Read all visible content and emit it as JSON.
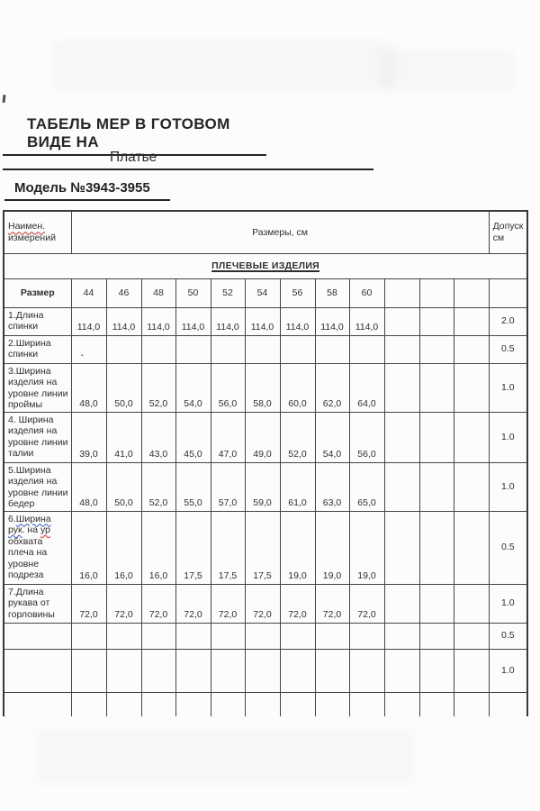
{
  "page": {
    "title": "ТАБЕЛЬ МЕР В ГОТОВОМ ВИДЕ НА",
    "garment": "Платье",
    "model": "Модель №3943-3955"
  },
  "table": {
    "header": {
      "name_segments": [
        {
          "text": "Наимен.",
          "underline": "red"
        },
        {
          "text": " измерений"
        }
      ],
      "sizes_title": "Размеры, см",
      "tolerance_title": "Допуск см"
    },
    "section_title": "ПЛЕЧЕВЫЕ ИЗДЕЛИЯ",
    "size_row_label": "Размер",
    "sizes": [
      "44",
      "46",
      "48",
      "50",
      "52",
      "54",
      "56",
      "58",
      "60",
      "",
      "",
      ""
    ],
    "rows": [
      {
        "label_segments": [
          {
            "text": "1.Длина спинки"
          }
        ],
        "values": [
          "114,0",
          "114,0",
          "114,0",
          "114,0",
          "114,0",
          "114,0",
          "114,0",
          "114,0",
          "114,0",
          "",
          "",
          ""
        ],
        "tolerance": "2.0"
      },
      {
        "label_segments": [
          {
            "text": "2.Ширина спинки"
          }
        ],
        "values": [
          "-",
          "",
          "",
          "",
          "",
          "",
          "",
          "",
          "",
          "",
          "",
          ""
        ],
        "tolerance": "0.5"
      },
      {
        "label_segments": [
          {
            "text": "3.Ширина изделия на уровне линии проймы"
          }
        ],
        "values": [
          "48,0",
          "50,0",
          "52,0",
          "54,0",
          "56,0",
          "58,0",
          "60,0",
          "62,0",
          "64,0",
          "",
          "",
          ""
        ],
        "tolerance": "1.0"
      },
      {
        "label_segments": [
          {
            "text": "4. Ширина изделия на уровне линии талии"
          }
        ],
        "values": [
          "39,0",
          "41,0",
          "43,0",
          "45,0",
          "47,0",
          "49,0",
          "52,0",
          "54,0",
          "56,0",
          "",
          "",
          ""
        ],
        "tolerance": "1.0"
      },
      {
        "label_segments": [
          {
            "text": "5.Ширина изделия на уровне линии бедер"
          }
        ],
        "values": [
          "48,0",
          "50,0",
          "52,0",
          "55,0",
          "57,0",
          "59,0",
          "61,0",
          "63,0",
          "65,0",
          "",
          "",
          ""
        ],
        "tolerance": "1.0"
      },
      {
        "label_segments": [
          {
            "text": "6."
          },
          {
            "text": "Ширина",
            "underline": "blue"
          },
          {
            "text": " "
          },
          {
            "text": "рук",
            "underline": "blue"
          },
          {
            "text": ". на "
          },
          {
            "text": "ур",
            "underline": "red"
          },
          {
            "text": " обхвата плеча на уровне подреза"
          }
        ],
        "values": [
          "16,0",
          "16,0",
          "16,0",
          "17,5",
          "17,5",
          "17,5",
          "19,0",
          "19,0",
          "19,0",
          "",
          "",
          ""
        ],
        "tolerance": "0.5"
      },
      {
        "label_segments": [
          {
            "text": "7.Длина рукава от горловины"
          }
        ],
        "values": [
          "72,0",
          "72,0",
          "72,0",
          "72,0",
          "72,0",
          "72,0",
          "72,0",
          "72,0",
          "72,0",
          "",
          "",
          ""
        ],
        "tolerance": "1.0"
      },
      {
        "label_segments": [
          {
            "text": ""
          }
        ],
        "values": [
          "",
          "",
          "",
          "",
          "",
          "",
          "",
          "",
          "",
          "",
          "",
          ""
        ],
        "tolerance": "0.5"
      },
      {
        "label_segments": [
          {
            "text": ""
          }
        ],
        "values": [
          "",
          "",
          "",
          "",
          "",
          "",
          "",
          "",
          "",
          "",
          "",
          ""
        ],
        "tolerance": "1.0"
      }
    ]
  }
}
